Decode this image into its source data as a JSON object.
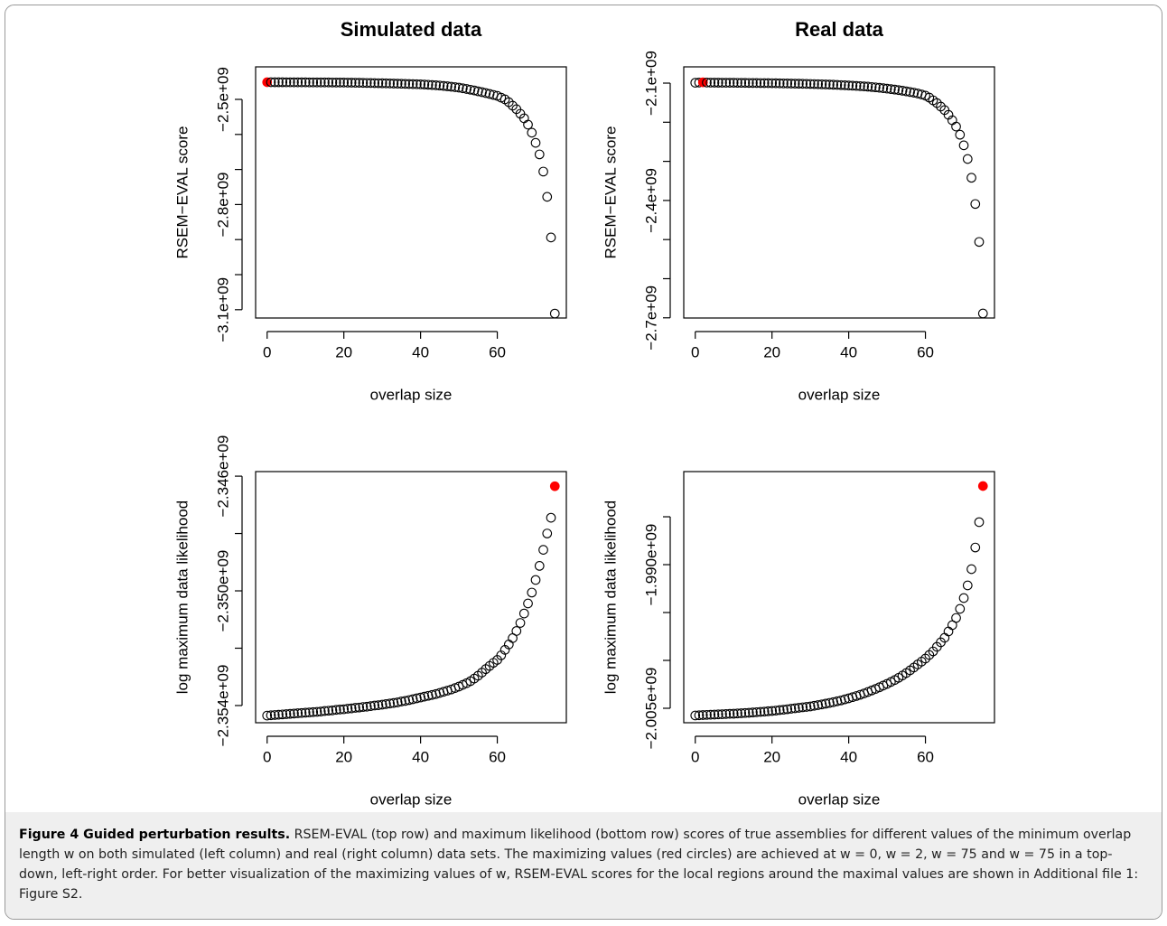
{
  "chart_data": [
    {
      "type": "scatter",
      "title": "Simulated data",
      "xlabel": "overlap size",
      "ylabel": "RSEM−EVAL score",
      "xlim": [
        -3,
        78
      ],
      "ylim": [
        -3123700000.0,
        -2407200000.0
      ],
      "xticks": [
        0,
        20,
        40,
        60
      ],
      "yticks": [
        {
          "value": -2500000000.0,
          "label": "−2.5e+09"
        },
        {
          "value": -2600000000.0,
          "label": null
        },
        {
          "value": -2700000000.0,
          "label": null
        },
        {
          "value": -2800000000.0,
          "label": "−2.8e+09"
        },
        {
          "value": -2900000000.0,
          "label": null
        },
        {
          "value": -3000000000.0,
          "label": null
        },
        {
          "value": -3100000000.0,
          "label": "−3.1e+09"
        }
      ],
      "x": [
        0,
        1,
        2,
        3,
        4,
        5,
        6,
        7,
        8,
        9,
        10,
        11,
        12,
        13,
        14,
        15,
        16,
        17,
        18,
        19,
        20,
        21,
        22,
        23,
        24,
        25,
        26,
        27,
        28,
        29,
        30,
        31,
        32,
        33,
        34,
        35,
        36,
        37,
        38,
        39,
        40,
        41,
        42,
        43,
        44,
        45,
        46,
        47,
        48,
        49,
        50,
        51,
        52,
        53,
        54,
        55,
        56,
        57,
        58,
        59,
        60,
        61,
        62,
        63,
        64,
        65,
        66,
        67,
        68,
        69,
        70,
        71,
        72,
        73,
        74,
        75
      ],
      "series": [
        {
          "color": "#000000",
          "highlight_x": 0,
          "highlight_color": "#ff0000",
          "values": [
            -2451000000.0,
            -2451000000.0,
            -2451100000.0,
            -2451100000.0,
            -2451100000.0,
            -2451200000.0,
            -2451200000.0,
            -2451300000.0,
            -2451300000.0,
            -2451400000.0,
            -2451400000.0,
            -2451500000.0,
            -2451500000.0,
            -2451600000.0,
            -2451600000.0,
            -2451700000.0,
            -2451700000.0,
            -2451800000.0,
            -2451900000.0,
            -2451900000.0,
            -2452000000.0,
            -2452200000.0,
            -2452300000.0,
            -2452500000.0,
            -2452700000.0,
            -2452900000.0,
            -2453100000.0,
            -2453300000.0,
            -2453500000.0,
            -2453700000.0,
            -2454000000.0,
            -2454200000.0,
            -2454500000.0,
            -2454800000.0,
            -2455100000.0,
            -2455400000.0,
            -2455700000.0,
            -2456100000.0,
            -2456400000.0,
            -2456700000.0,
            -2457000000.0,
            -2457600000.0,
            -2458200000.0,
            -2459000000.0,
            -2459700000.0,
            -2460500000.0,
            -2461600000.0,
            -2462700000.0,
            -2463900000.0,
            -2465200000.0,
            -2466500000.0,
            -2468400000.0,
            -2470300000.0,
            -2472400000.0,
            -2474600000.0,
            -2477000000.0,
            -2479400000.0,
            -2481900000.0,
            -2484500000.0,
            -2487200000.0,
            -2490000000.0,
            -2495000000.0,
            -2500000000.0,
            -2508000000.0,
            -2518000000.0,
            -2528000000.0,
            -2541000000.0,
            -2554000000.0,
            -2572000000.0,
            -2595000000.0,
            -2624000000.0,
            -2657000000.0,
            -2706000000.0,
            -2778000000.0,
            -2894000000.0,
            -3111000000.0
          ]
        }
      ]
    },
    {
      "type": "scatter",
      "title": "Real data",
      "xlabel": "overlap size",
      "ylabel": "RSEM−EVAL score",
      "xlim": [
        -3,
        78
      ],
      "ylim": [
        -2700500000.0,
        -2058400000.0
      ],
      "xticks": [
        0,
        20,
        40,
        60
      ],
      "yticks": [
        {
          "value": -2100000000.0,
          "label": "−2.1e+09"
        },
        {
          "value": -2200000000.0,
          "label": null
        },
        {
          "value": -2300000000.0,
          "label": null
        },
        {
          "value": -2400000000.0,
          "label": "−2.4e+09"
        },
        {
          "value": -2500000000.0,
          "label": null
        },
        {
          "value": -2600000000.0,
          "label": null
        },
        {
          "value": -2700000000.0,
          "label": "−2.7e+09"
        }
      ],
      "x": [
        0,
        1,
        2,
        3,
        4,
        5,
        6,
        7,
        8,
        9,
        10,
        11,
        12,
        13,
        14,
        15,
        16,
        17,
        18,
        19,
        20,
        21,
        22,
        23,
        24,
        25,
        26,
        27,
        28,
        29,
        30,
        31,
        32,
        33,
        34,
        35,
        36,
        37,
        38,
        39,
        40,
        41,
        42,
        43,
        44,
        45,
        46,
        47,
        48,
        49,
        50,
        51,
        52,
        53,
        54,
        55,
        56,
        57,
        58,
        59,
        60,
        61,
        62,
        63,
        64,
        65,
        66,
        67,
        68,
        69,
        70,
        71,
        72,
        73,
        74,
        75
      ],
      "series": [
        {
          "color": "#000000",
          "highlight_x": 2,
          "highlight_color": "#ff0000",
          "values": [
            -2099000000.0,
            -2098500000.0,
            -2098000000.0,
            -2098500000.0,
            -2098700000.0,
            -2098800000.0,
            -2098900000.0,
            -2099000000.0,
            -2099000000.0,
            -2099100000.0,
            -2099100000.0,
            -2099200000.0,
            -2099300000.0,
            -2099400000.0,
            -2099500000.0,
            -2099600000.0,
            -2099700000.0,
            -2099800000.0,
            -2099900000.0,
            -2100000000.0,
            -2100100000.0,
            -2100300000.0,
            -2100500000.0,
            -2100700000.0,
            -2100900000.0,
            -2101100000.0,
            -2101300000.0,
            -2101500000.0,
            -2101700000.0,
            -2101900000.0,
            -2102100000.0,
            -2102400000.0,
            -2102700000.0,
            -2103000000.0,
            -2103300000.0,
            -2103700000.0,
            -2104100000.0,
            -2104500000.0,
            -2105000000.0,
            -2105500000.0,
            -2106000000.0,
            -2106500000.0,
            -2107100000.0,
            -2107700000.0,
            -2108300000.0,
            -2109000000.0,
            -2109900000.0,
            -2110800000.0,
            -2111800000.0,
            -2112900000.0,
            -2114000000.0,
            -2115200000.0,
            -2116500000.0,
            -2117900000.0,
            -2119400000.0,
            -2121000000.0,
            -2122700000.0,
            -2124500000.0,
            -2126500000.0,
            -2129000000.0,
            -2132000000.0,
            -2137000000.0,
            -2144000000.0,
            -2151000000.0,
            -2160000000.0,
            -2169000000.0,
            -2181000000.0,
            -2195000000.0,
            -2211000000.0,
            -2232000000.0,
            -2259000000.0,
            -2294000000.0,
            -2342000000.0,
            -2409000000.0,
            -2506000000.0,
            -2689000000.0
          ]
        }
      ]
    },
    {
      "type": "scatter",
      "xlabel": "overlap size",
      "ylabel": "log maximum data likelihood",
      "xlim": [
        -3,
        78
      ],
      "ylim": [
        -2354600000.0,
        -2345840000.0
      ],
      "xticks": [
        0,
        20,
        40,
        60
      ],
      "yticks": [
        {
          "value": -2346000000.0,
          "label": "−2.346e+09"
        },
        {
          "value": -2348000000.0,
          "label": null
        },
        {
          "value": -2350000000.0,
          "label": "−2.350e+09"
        },
        {
          "value": -2352000000.0,
          "label": null
        },
        {
          "value": -2354000000.0,
          "label": "−2.354e+09"
        }
      ],
      "x": [
        0,
        1,
        2,
        3,
        4,
        5,
        6,
        7,
        8,
        9,
        10,
        11,
        12,
        13,
        14,
        15,
        16,
        17,
        18,
        19,
        20,
        21,
        22,
        23,
        24,
        25,
        26,
        27,
        28,
        29,
        30,
        31,
        32,
        33,
        34,
        35,
        36,
        37,
        38,
        39,
        40,
        41,
        42,
        43,
        44,
        45,
        46,
        47,
        48,
        49,
        50,
        51,
        52,
        53,
        54,
        55,
        56,
        57,
        58,
        59,
        60,
        61,
        62,
        63,
        64,
        65,
        66,
        67,
        68,
        69,
        70,
        71,
        72,
        73,
        74,
        75
      ],
      "series": [
        {
          "color": "#000000",
          "highlight_x": 75,
          "highlight_color": "#ff0000",
          "values": [
            -2354350000.0,
            -2354340000.0,
            -2354330000.0,
            -2354320000.0,
            -2354310000.0,
            -2354300000.0,
            -2354290000.0,
            -2354280000.0,
            -2354270000.0,
            -2354260000.0,
            -2354250000.0,
            -2354240000.0,
            -2354230000.0,
            -2354220000.0,
            -2354210000.0,
            -2354190000.0,
            -2354180000.0,
            -2354170000.0,
            -2354150000.0,
            -2354140000.0,
            -2354130000.0,
            -2354110000.0,
            -2354100000.0,
            -2354080000.0,
            -2354070000.0,
            -2354050000.0,
            -2354040000.0,
            -2354020000.0,
            -2354000000.0,
            -2353990000.0,
            -2353970000.0,
            -2353950000.0,
            -2353930000.0,
            -2353910000.0,
            -2353890000.0,
            -2353860000.0,
            -2353840000.0,
            -2353810000.0,
            -2353780000.0,
            -2353750000.0,
            -2353720000.0,
            -2353690000.0,
            -2353660000.0,
            -2353630000.0,
            -2353600000.0,
            -2353560000.0,
            -2353520000.0,
            -2353480000.0,
            -2353440000.0,
            -2353390000.0,
            -2353340000.0,
            -2353280000.0,
            -2353220000.0,
            -2353150000.0,
            -2353060000.0,
            -2352960000.0,
            -2352850000.0,
            -2352730000.0,
            -2352620000.0,
            -2352510000.0,
            -2352410000.0,
            -2352250000.0,
            -2352060000.0,
            -2351870000.0,
            -2351650000.0,
            -2351400000.0,
            -2351120000.0,
            -2350790000.0,
            -2350440000.0,
            -2350060000.0,
            -2349620000.0,
            -2349130000.0,
            -2348570000.0,
            -2348000000.0,
            -2347450000.0,
            -2346350000.0
          ]
        }
      ]
    },
    {
      "type": "scatter",
      "xlabel": "overlap size",
      "ylabel": "log maximum data likelihood",
      "xlim": [
        -3,
        78
      ],
      "ylim": [
        -2006510000.0,
        -1980280000.0
      ],
      "xticks": [
        0,
        20,
        40,
        60
      ],
      "yticks": [
        {
          "value": -1985000000.0,
          "label": null
        },
        {
          "value": -1990000000.0,
          "label": "−1.990e+09"
        },
        {
          "value": -1995000000.0,
          "label": null
        },
        {
          "value": -2000000000.0,
          "label": null
        },
        {
          "value": -2005000000.0,
          "label": "−2.005e+09"
        }
      ],
      "x": [
        0,
        1,
        2,
        3,
        4,
        5,
        6,
        7,
        8,
        9,
        10,
        11,
        12,
        13,
        14,
        15,
        16,
        17,
        18,
        19,
        20,
        21,
        22,
        23,
        24,
        25,
        26,
        27,
        28,
        29,
        30,
        31,
        32,
        33,
        34,
        35,
        36,
        37,
        38,
        39,
        40,
        41,
        42,
        43,
        44,
        45,
        46,
        47,
        48,
        49,
        50,
        51,
        52,
        53,
        54,
        55,
        56,
        57,
        58,
        59,
        60,
        61,
        62,
        63,
        64,
        65,
        66,
        67,
        68,
        69,
        70,
        71,
        72,
        73,
        74,
        75
      ],
      "series": [
        {
          "color": "#000000",
          "highlight_x": 75,
          "highlight_color": "#ff0000",
          "values": [
            -2005750000.0,
            -2005730000.0,
            -2005710000.0,
            -2005690000.0,
            -2005670000.0,
            -2005660000.0,
            -2005640000.0,
            -2005620000.0,
            -2005600000.0,
            -2005580000.0,
            -2005570000.0,
            -2005540000.0,
            -2005520000.0,
            -2005490000.0,
            -2005470000.0,
            -2005440000.0,
            -2005410000.0,
            -2005380000.0,
            -2005350000.0,
            -2005310000.0,
            -2005280000.0,
            -2005240000.0,
            -2005190000.0,
            -2005150000.0,
            -2005100000.0,
            -2005050000.0,
            -2005000000.0,
            -2004950000.0,
            -2004900000.0,
            -2004860000.0,
            -2004810000.0,
            -2004740000.0,
            -2004670000.0,
            -2004600000.0,
            -2004520000.0,
            -2004440000.0,
            -2004360000.0,
            -2004270000.0,
            -2004180000.0,
            -2004070000.0,
            -2003960000.0,
            -2003840000.0,
            -2003720000.0,
            -2003590000.0,
            -2003450000.0,
            -2003300000.0,
            -2003140000.0,
            -2002980000.0,
            -2002810000.0,
            -2002630000.0,
            -2002450000.0,
            -2002250000.0,
            -2002050000.0,
            -2001820000.0,
            -2001580000.0,
            -2001320000.0,
            -2001040000.0,
            -2000740000.0,
            -2000420000.0,
            -2000130000.0,
            -1999810000.0,
            -1999430000.0,
            -1999060000.0,
            -1998580000.0,
            -1998110000.0,
            -1997640000.0,
            -1996980000.0,
            -1996320000.0,
            -1995570000.0,
            -1994620000.0,
            -1993490000.0,
            -1992170000.0,
            -1990470000.0,
            -1988210000.0,
            -1985560000.0,
            -1981790000.0
          ]
        }
      ]
    }
  ],
  "caption": {
    "label": "Figure 4 Guided perturbation results.",
    "text": "RSEM-EVAL (top row) and maximum likelihood (bottom row) scores of true assemblies for different values of the minimum overlap length w on both simulated (left column) and real (right column) data sets. The maximizing values (red circles) are achieved at w = 0, w = 2, w = 75 and w = 75 in a top-down, left-right order. For better visualization of the maximizing values of w, RSEM-EVAL scores for the local regions around the maximal values are shown in Additional file 1: Figure S2."
  }
}
